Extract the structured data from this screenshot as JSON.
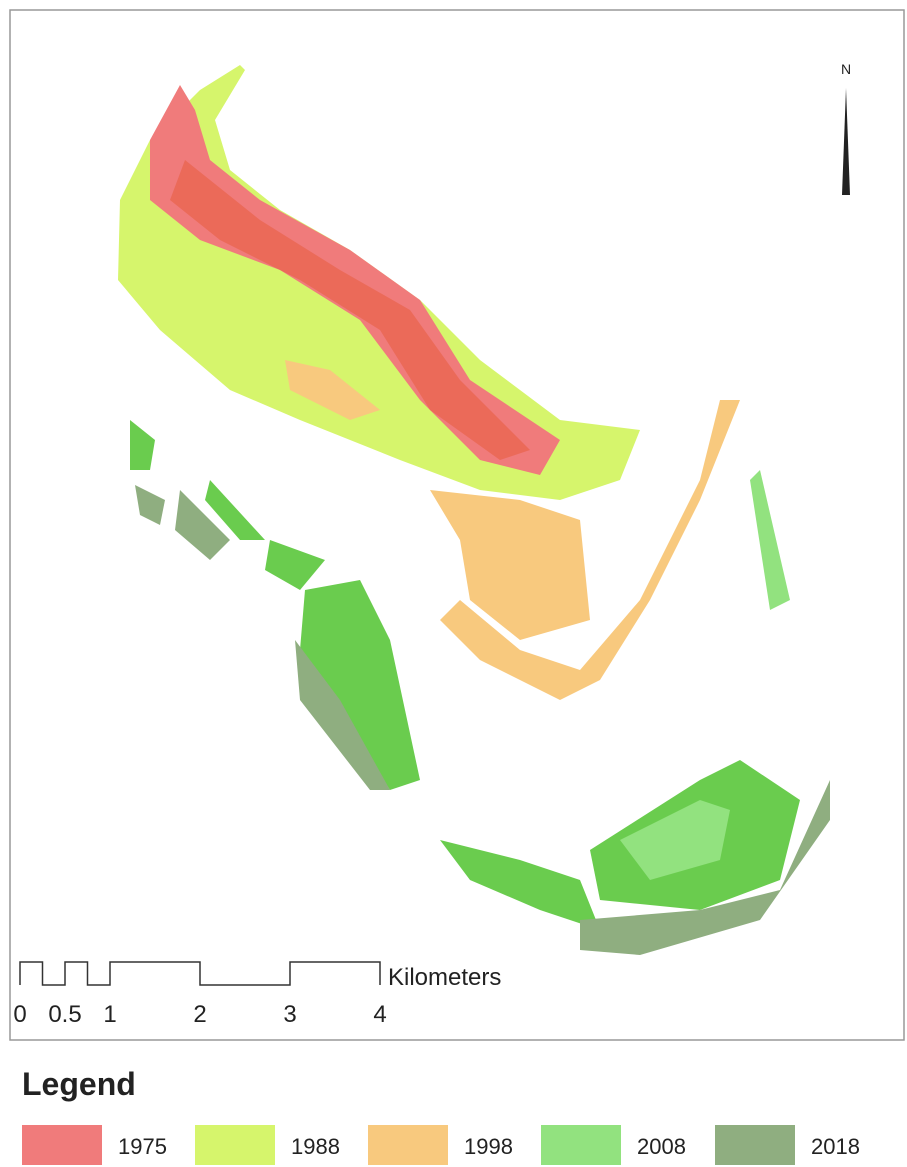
{
  "north_label": "N",
  "scale_bar": {
    "unit": "Kilometers",
    "ticks": [
      0,
      0.5,
      1,
      2,
      3,
      4
    ]
  },
  "legend": {
    "title": "Legend",
    "items": [
      {
        "label": "1975",
        "color": "#f07b7b"
      },
      {
        "label": "1988",
        "color": "#d6f56c"
      },
      {
        "label": "1998",
        "color": "#f8c97e"
      },
      {
        "label": "2008",
        "color": "#92e27f"
      },
      {
        "label": "2018",
        "color": "#8fae80"
      }
    ]
  }
}
